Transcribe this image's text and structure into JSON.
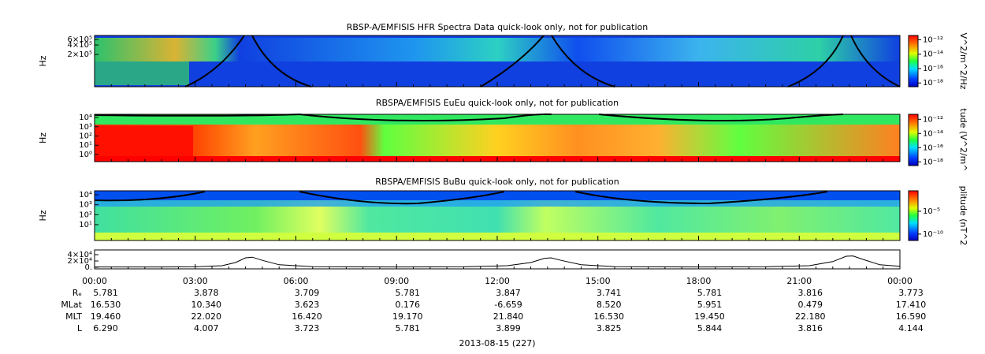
{
  "chart_data": [
    {
      "type": "spectrogram",
      "title": "RBSP-A/EMFISIS  HFR Spectra Data quick-look only, not for publication",
      "ylabel": "Hz",
      "log_y": true,
      "ylim": [
        19000,
        800000
      ],
      "yticks": [
        {
          "value": 200000,
          "label": "2×10⁵"
        },
        {
          "value": 400000,
          "label": "4×10⁵"
        },
        {
          "value": 600000,
          "label": "6×10⁵"
        }
      ],
      "colorbar": {
        "label": "V^2/m^2/Hz",
        "log": true,
        "lim": [
          3e-19,
          4e-12
        ],
        "ticks": [
          {
            "value": 1e-12,
            "label": "10⁻¹²"
          },
          {
            "value": 1e-14,
            "label": "10⁻¹⁴"
          },
          {
            "value": 1e-16,
            "label": "10⁻¹⁶"
          },
          {
            "value": 1e-18,
            "label": "10⁻¹⁸"
          }
        ]
      }
    },
    {
      "type": "spectrogram",
      "title": "RBSPA/EMFISIS  EuEu quick-look only, not for publication",
      "ylabel": "Hz",
      "log_y": true,
      "ylim": [
        0.17,
        22000
      ],
      "yticks": [
        {
          "value": 1,
          "label": "10⁰"
        },
        {
          "value": 10,
          "label": "10¹"
        },
        {
          "value": 100,
          "label": "10²"
        },
        {
          "value": 1000,
          "label": "10³"
        },
        {
          "value": 10000,
          "label": "10⁴"
        }
      ],
      "colorbar": {
        "label": "tude (V^2/m^",
        "log": true,
        "lim": [
          3e-19,
          5e-12
        ],
        "ticks": [
          {
            "value": 1e-12,
            "label": "10⁻¹²"
          },
          {
            "value": 1e-14,
            "label": "10⁻¹⁴"
          },
          {
            "value": 1e-16,
            "label": "10⁻¹⁶"
          },
          {
            "value": 1e-18,
            "label": "10⁻¹⁸"
          }
        ]
      }
    },
    {
      "type": "spectrogram",
      "title": "RBSPA/EMFISIS  BuBu quick-look only, not for publication",
      "ylabel": "Hz",
      "log_y": true,
      "ylim": [
        0.26,
        25000
      ],
      "yticks": [
        {
          "value": 10,
          "label": "10¹"
        },
        {
          "value": 100,
          "label": "10²"
        },
        {
          "value": 1000,
          "label": "10³"
        },
        {
          "value": 10000,
          "label": "10⁴"
        }
      ],
      "colorbar": {
        "label": "plitude (nT^2",
        "log": true,
        "lim": [
          4e-12,
          0.3
        ],
        "ticks": [
          {
            "value": 1e-05,
            "label": "10⁻⁵"
          },
          {
            "value": 1e-10,
            "label": "10⁻¹⁰"
          }
        ]
      }
    },
    {
      "type": "line",
      "color": "#000000",
      "ylim": [
        -5000,
        55000
      ],
      "yticks": [
        {
          "value": 0,
          "label": "0."
        },
        {
          "value": 20000,
          "label": "2×10⁴"
        },
        {
          "value": 40000,
          "label": "4×10⁴"
        }
      ],
      "x": [
        0,
        2,
        3,
        3.8,
        4.2,
        4.5,
        4.7,
        5.0,
        5.5,
        6.5,
        9,
        11,
        12.3,
        13.0,
        13.4,
        13.6,
        13.9,
        14.5,
        15.5,
        18,
        20,
        21.3,
        22.0,
        22.4,
        22.6,
        22.9,
        23.4,
        24
      ],
      "values": [
        1000,
        1000,
        1500,
        5000,
        15000,
        30000,
        32000,
        22000,
        8000,
        2000,
        1000,
        1500,
        5000,
        15000,
        28000,
        30000,
        22000,
        8000,
        2000,
        1000,
        1500,
        5000,
        18000,
        35000,
        36000,
        25000,
        8000,
        3000
      ]
    }
  ],
  "x_axis": {
    "xlim": [
      0,
      24
    ],
    "xticks": [
      {
        "value": 0,
        "label": "00:00"
      },
      {
        "value": 3,
        "label": "03:00"
      },
      {
        "value": 6,
        "label": "06:00"
      },
      {
        "value": 9,
        "label": "09:00"
      },
      {
        "value": 12,
        "label": "12:00"
      },
      {
        "value": 15,
        "label": "15:00"
      },
      {
        "value": 18,
        "label": "18:00"
      },
      {
        "value": 21,
        "label": "21:00"
      },
      {
        "value": 24,
        "label": "00:00"
      }
    ],
    "date_label": "2013-08-15 (227)"
  },
  "ephemeris": [
    {
      "label": "Rₑ",
      "values": [
        "5.781",
        "3.878",
        "3.709",
        "5.781",
        "3.847",
        "3.741",
        "5.781",
        "3.816",
        "3.773"
      ]
    },
    {
      "label": "MLat",
      "values": [
        "16.530",
        "10.340",
        "3.623",
        "0.176",
        "-6.659",
        "8.520",
        "5.951",
        "0.479",
        "17.410"
      ]
    },
    {
      "label": "MLT",
      "values": [
        "19.460",
        "22.020",
        "16.420",
        "19.170",
        "21.840",
        "16.530",
        "19.450",
        "22.180",
        "16.590"
      ]
    },
    {
      "label": "L",
      "values": [
        "6.290",
        "4.007",
        "3.723",
        "5.781",
        "3.899",
        "3.825",
        "5.844",
        "3.816",
        "4.144"
      ]
    }
  ]
}
